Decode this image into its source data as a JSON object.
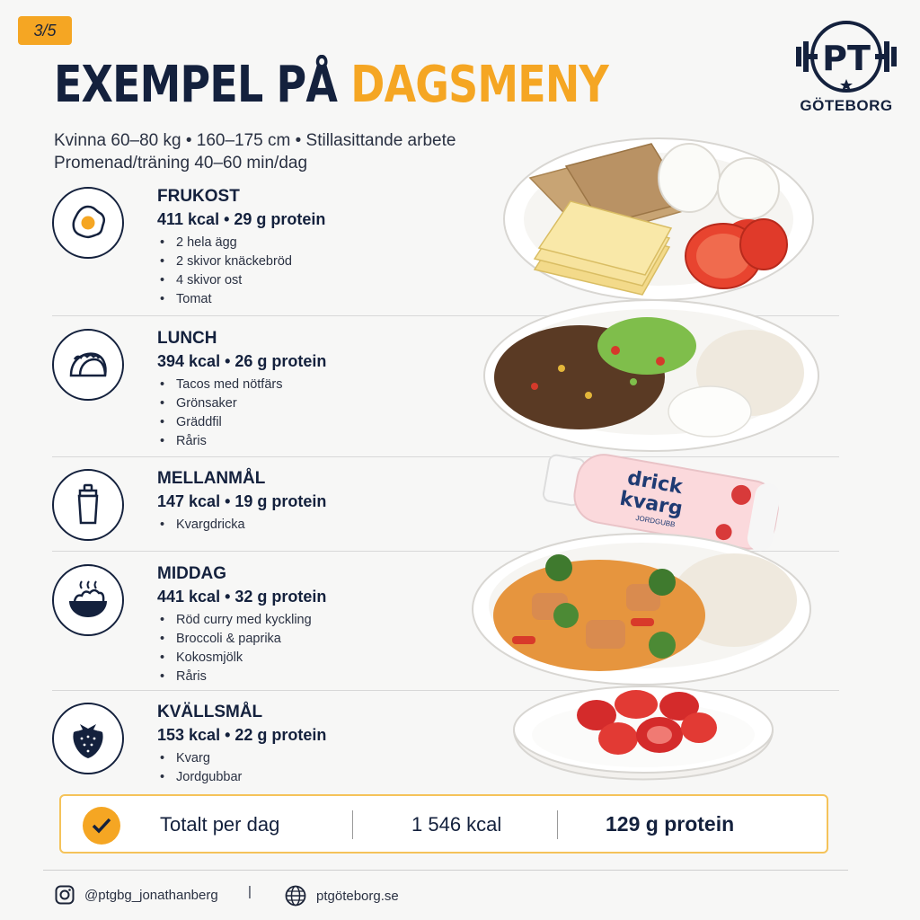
{
  "badge": "3/5",
  "title": {
    "part1": "EXEMPEL PÅ",
    "part2": "DAGSMENY"
  },
  "subtitle": {
    "line1": "Kvinna 60–80 kg  •  160–175 cm  •  Stillasittande arbete",
    "line2": "Promenad/träning 40–60 min/dag"
  },
  "logo": {
    "mark": "PT",
    "city": "GÖTEBORG"
  },
  "meals": [
    {
      "name": "FRUKOST",
      "stats": "411 kcal  •  29 g protein",
      "icon": "fried-egg-icon",
      "items": [
        "2 hela ägg",
        "2 skivor knäckebröd",
        "4 skivor ost",
        "Tomat"
      ]
    },
    {
      "name": "LUNCH",
      "stats": "394 kcal  •  26 g protein",
      "icon": "taco-icon",
      "items": [
        "Tacos med nötfärs",
        "Grönsaker",
        "Gräddfil",
        "Råris"
      ]
    },
    {
      "name": "MELLANMÅL",
      "stats": "147 kcal  •  19 g protein",
      "icon": "shaker-bottle-icon",
      "items": [
        "Kvargdricka"
      ]
    },
    {
      "name": "MIDDAG",
      "stats": "441 kcal  •  32 g protein",
      "icon": "food-bowl-icon",
      "items": [
        "Röd curry med kyckling",
        "Broccoli & paprika",
        "Kokosmjölk",
        "Råris"
      ]
    },
    {
      "name": "KVÄLLSMÅL",
      "stats": "153 kcal  •  22 g protein",
      "icon": "strawberry-icon",
      "items": [
        "Kvarg",
        "Jordgubbar"
      ]
    }
  ],
  "bottle": {
    "line1": "drick",
    "line2": "kvarg",
    "flavor": "JORDGUBB"
  },
  "total": {
    "label": "Totalt per dag",
    "kcal": "1 546 kcal",
    "protein": "129 g protein"
  },
  "footer": {
    "instagram": "@ptgbg_jonathanberg",
    "separator": "|",
    "website": "ptgöteborg.se"
  },
  "colors": {
    "accent": "#f5a623",
    "navy": "#14213d"
  }
}
